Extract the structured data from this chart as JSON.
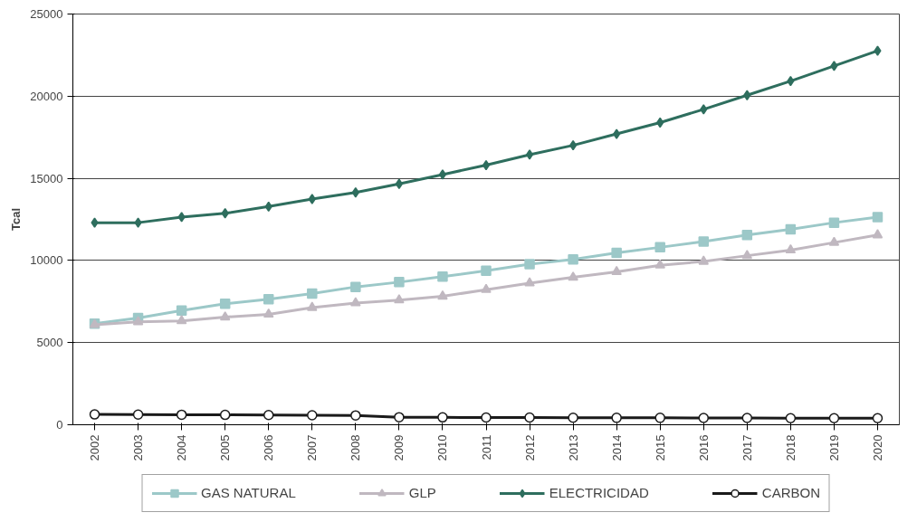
{
  "chart_data": {
    "type": "line",
    "ylabel": "Tcal",
    "categories": [
      "2002",
      "2003",
      "2004",
      "2005",
      "2006",
      "2007",
      "2008",
      "2009",
      "2010",
      "2011",
      "2012",
      "2013",
      "2014",
      "2015",
      "2016",
      "2017",
      "2018",
      "2019",
      "2020"
    ],
    "ylim": [
      0,
      25000
    ],
    "yticks": [
      0,
      5000,
      10000,
      15000,
      20000,
      25000
    ],
    "grid": "y",
    "legend": "bottom",
    "series": [
      {
        "name": "GAS NATURAL",
        "color": "#9cc8c8",
        "marker": "square",
        "values": [
          6150,
          6500,
          6950,
          7360,
          7640,
          7990,
          8390,
          8680,
          9020,
          9370,
          9770,
          10060,
          10460,
          10800,
          11150,
          11550,
          11900,
          12300,
          12640
        ]
      },
      {
        "name": "GLP",
        "color": "#c0b8c0",
        "marker": "triangle",
        "values": [
          6090,
          6260,
          6320,
          6550,
          6720,
          7130,
          7410,
          7590,
          7820,
          8220,
          8620,
          8970,
          9310,
          9710,
          9940,
          10290,
          10630,
          11090,
          11550
        ]
      },
      {
        "name": "ELECTRICIDAD",
        "color": "#2e6e5e",
        "marker": "diamond",
        "values": [
          12300,
          12300,
          12640,
          12870,
          13280,
          13740,
          14140,
          14660,
          15230,
          15800,
          16440,
          17010,
          17700,
          18390,
          19200,
          20060,
          20920,
          21840,
          22760
        ]
      },
      {
        "name": "CARBON",
        "color": "#1a1a1a",
        "marker": "circle",
        "values": [
          630,
          620,
          610,
          600,
          590,
          580,
          570,
          460,
          450,
          440,
          440,
          430,
          420,
          420,
          410,
          410,
          400,
          400,
          400
        ]
      }
    ]
  }
}
